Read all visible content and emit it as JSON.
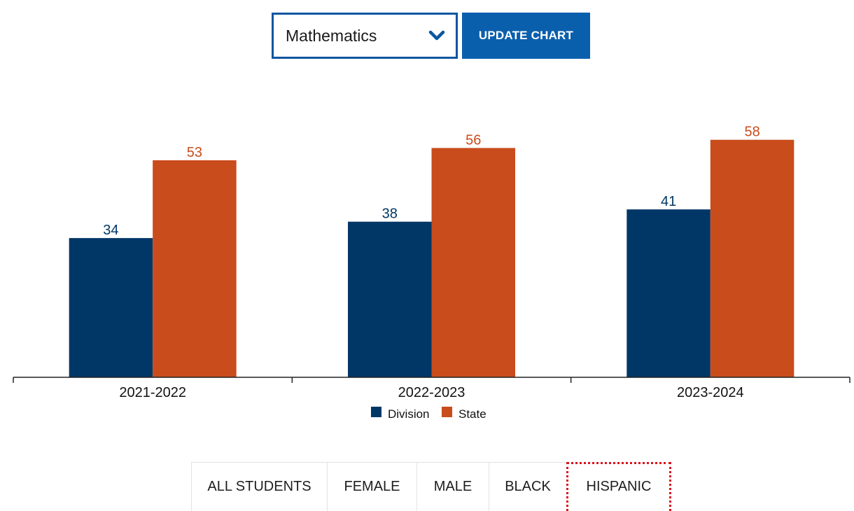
{
  "subject_select": {
    "value": "Mathematics"
  },
  "update_button": {
    "label": "UPDATE CHART"
  },
  "colors": {
    "division": "#003767",
    "state": "#c94c1c",
    "accent": "#0a5fad",
    "focus_outline": "#d9141c"
  },
  "chart_data": {
    "type": "bar",
    "categories": [
      "2021-2022",
      "2022-2023",
      "2023-2024"
    ],
    "series": [
      {
        "name": "Division",
        "values": [
          34,
          38,
          41
        ],
        "color": "#003767"
      },
      {
        "name": "State",
        "values": [
          53,
          56,
          58
        ],
        "color": "#c94c1c"
      }
    ],
    "ylim": [
      0,
      100
    ],
    "grid": false,
    "legend": "bottom-center"
  },
  "tabs": [
    {
      "label": "ALL STUDENTS"
    },
    {
      "label": "FEMALE"
    },
    {
      "label": "MALE"
    },
    {
      "label": "BLACK"
    },
    {
      "label": "HISPANIC",
      "focused": true
    }
  ]
}
